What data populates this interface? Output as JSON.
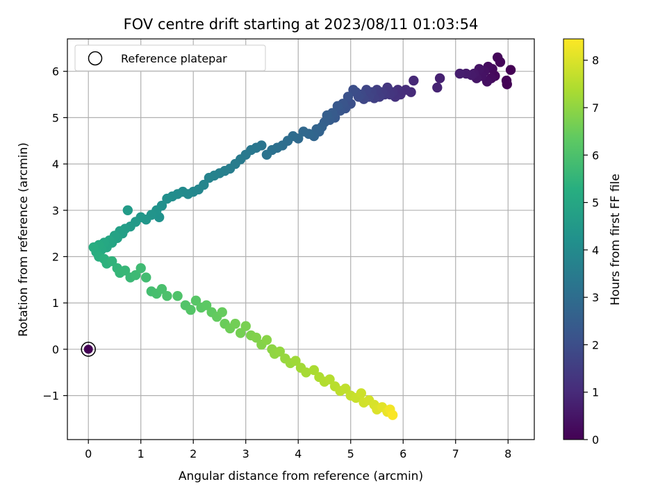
{
  "chart_data": {
    "type": "scatter",
    "title": "FOV centre drift starting at 2023/08/11 01:03:54",
    "xlabel": "Angular distance from reference (arcmin)",
    "ylabel": "Rotation from reference (arcmin)",
    "xlim": [
      -0.4,
      8.5
    ],
    "ylim": [
      -1.95,
      6.7
    ],
    "xticks": [
      0,
      1,
      2,
      3,
      4,
      5,
      6,
      7,
      8
    ],
    "yticks": [
      -1,
      0,
      1,
      2,
      3,
      4,
      5,
      6
    ],
    "grid": true,
    "legend": {
      "placement": "top-left",
      "entries": [
        "Reference platepar"
      ]
    },
    "reference_point": {
      "x": 0,
      "y": 0,
      "label": "Reference platepar"
    },
    "colorbar": {
      "label": "Hours from first FF file",
      "range": [
        0,
        8.45
      ],
      "ticks": [
        0,
        1,
        2,
        3,
        4,
        5,
        6,
        7,
        8
      ],
      "colormap": "viridis"
    },
    "series_color_by": "hours",
    "points_columns": [
      "x",
      "y",
      "hours"
    ],
    "points": [
      [
        8.05,
        6.03,
        0.0
      ],
      [
        7.98,
        5.72,
        0.03
      ],
      [
        7.97,
        5.8,
        0.06
      ],
      [
        7.85,
        6.2,
        0.1
      ],
      [
        7.8,
        6.3,
        0.14
      ],
      [
        7.75,
        5.9,
        0.18
      ],
      [
        7.7,
        6.05,
        0.22
      ],
      [
        7.68,
        5.85,
        0.26
      ],
      [
        7.62,
        6.1,
        0.3
      ],
      [
        7.6,
        5.78,
        0.34
      ],
      [
        7.55,
        6.0,
        0.38
      ],
      [
        7.5,
        5.9,
        0.42
      ],
      [
        7.45,
        6.05,
        0.46
      ],
      [
        7.4,
        5.85,
        0.5
      ],
      [
        7.35,
        5.95,
        0.55
      ],
      [
        7.3,
        5.92,
        0.6
      ],
      [
        7.2,
        5.95,
        0.65
      ],
      [
        7.08,
        5.95,
        0.7
      ],
      [
        6.7,
        5.85,
        0.78
      ],
      [
        6.65,
        5.65,
        0.85
      ],
      [
        6.2,
        5.8,
        0.95
      ],
      [
        6.15,
        5.55,
        1.0
      ],
      [
        6.05,
        5.6,
        1.05
      ],
      [
        5.95,
        5.5,
        1.1
      ],
      [
        5.9,
        5.6,
        1.15
      ],
      [
        5.85,
        5.45,
        1.2
      ],
      [
        5.8,
        5.55,
        1.25
      ],
      [
        5.75,
        5.5,
        1.3
      ],
      [
        5.7,
        5.65,
        1.35
      ],
      [
        5.65,
        5.5,
        1.4
      ],
      [
        5.6,
        5.55,
        1.45
      ],
      [
        5.55,
        5.45,
        1.5
      ],
      [
        5.5,
        5.6,
        1.55
      ],
      [
        5.45,
        5.42,
        1.6
      ],
      [
        5.4,
        5.55,
        1.65
      ],
      [
        5.35,
        5.45,
        1.7
      ],
      [
        5.3,
        5.6,
        1.75
      ],
      [
        5.25,
        5.4,
        1.8
      ],
      [
        5.2,
        5.5,
        1.85
      ],
      [
        5.15,
        5.45,
        1.9
      ],
      [
        5.1,
        5.55,
        1.95
      ],
      [
        5.05,
        5.6,
        2.0
      ],
      [
        5.0,
        5.3,
        2.05
      ],
      [
        4.95,
        5.45,
        2.1
      ],
      [
        4.9,
        5.2,
        2.15
      ],
      [
        4.85,
        5.3,
        2.2
      ],
      [
        4.8,
        5.15,
        2.25
      ],
      [
        4.75,
        5.25,
        2.3
      ],
      [
        4.7,
        5.0,
        2.35
      ],
      [
        4.65,
        5.1,
        2.4
      ],
      [
        4.6,
        4.95,
        2.45
      ],
      [
        4.55,
        5.05,
        2.5
      ],
      [
        4.5,
        4.9,
        2.55
      ],
      [
        4.45,
        4.8,
        2.6
      ],
      [
        4.4,
        4.7,
        2.65
      ],
      [
        4.35,
        4.75,
        2.7
      ],
      [
        4.3,
        4.6,
        2.75
      ],
      [
        4.2,
        4.65,
        2.8
      ],
      [
        4.1,
        4.7,
        2.85
      ],
      [
        4.0,
        4.55,
        2.9
      ],
      [
        3.9,
        4.6,
        2.95
      ],
      [
        3.8,
        4.5,
        3.0
      ],
      [
        3.7,
        4.4,
        3.05
      ],
      [
        3.6,
        4.35,
        3.1
      ],
      [
        3.5,
        4.3,
        3.15
      ],
      [
        3.4,
        4.2,
        3.2
      ],
      [
        3.3,
        4.4,
        3.25
      ],
      [
        3.2,
        4.35,
        3.3
      ],
      [
        3.1,
        4.3,
        3.35
      ],
      [
        3.0,
        4.2,
        3.4
      ],
      [
        2.9,
        4.1,
        3.45
      ],
      [
        2.8,
        4.0,
        3.5
      ],
      [
        2.7,
        3.9,
        3.55
      ],
      [
        2.6,
        3.85,
        3.6
      ],
      [
        2.5,
        3.8,
        3.65
      ],
      [
        2.4,
        3.75,
        3.7
      ],
      [
        2.3,
        3.7,
        3.75
      ],
      [
        2.2,
        3.55,
        3.8
      ],
      [
        2.1,
        3.45,
        3.85
      ],
      [
        2.0,
        3.4,
        3.9
      ],
      [
        1.9,
        3.35,
        3.95
      ],
      [
        1.8,
        3.4,
        4.0
      ],
      [
        1.7,
        3.35,
        4.05
      ],
      [
        1.6,
        3.3,
        4.1
      ],
      [
        1.5,
        3.25,
        4.15
      ],
      [
        1.4,
        3.1,
        4.2
      ],
      [
        1.35,
        2.85,
        4.25
      ],
      [
        1.3,
        3.0,
        4.3
      ],
      [
        1.2,
        2.9,
        4.35
      ],
      [
        1.1,
        2.8,
        4.4
      ],
      [
        1.0,
        2.85,
        4.45
      ],
      [
        0.9,
        2.75,
        4.5
      ],
      [
        0.8,
        2.65,
        4.55
      ],
      [
        0.75,
        3.0,
        4.6
      ],
      [
        0.7,
        2.6,
        4.65
      ],
      [
        0.65,
        2.5,
        4.7
      ],
      [
        0.6,
        2.55,
        4.75
      ],
      [
        0.55,
        2.4,
        4.8
      ],
      [
        0.5,
        2.45,
        4.85
      ],
      [
        0.45,
        2.3,
        4.9
      ],
      [
        0.4,
        2.35,
        4.95
      ],
      [
        0.35,
        2.2,
        5.0
      ],
      [
        0.3,
        2.3,
        5.05
      ],
      [
        0.25,
        2.15,
        5.1
      ],
      [
        0.2,
        2.25,
        5.15
      ],
      [
        0.15,
        2.1,
        5.2
      ],
      [
        0.1,
        2.2,
        5.25
      ],
      [
        0.2,
        2.0,
        5.3
      ],
      [
        0.3,
        1.95,
        5.35
      ],
      [
        0.35,
        1.85,
        5.4
      ],
      [
        0.45,
        1.9,
        5.45
      ],
      [
        0.55,
        1.75,
        5.5
      ],
      [
        0.6,
        1.65,
        5.55
      ],
      [
        0.7,
        1.7,
        5.6
      ],
      [
        0.8,
        1.55,
        5.65
      ],
      [
        0.9,
        1.6,
        5.7
      ],
      [
        1.0,
        1.75,
        5.75
      ],
      [
        1.1,
        1.55,
        5.8
      ],
      [
        1.2,
        1.25,
        5.85
      ],
      [
        1.3,
        1.2,
        5.9
      ],
      [
        1.4,
        1.3,
        5.95
      ],
      [
        1.5,
        1.15,
        6.0
      ],
      [
        1.7,
        1.15,
        6.05
      ],
      [
        1.85,
        0.95,
        6.1
      ],
      [
        1.95,
        0.85,
        6.15
      ],
      [
        2.05,
        1.05,
        6.2
      ],
      [
        2.15,
        0.9,
        6.25
      ],
      [
        2.25,
        0.95,
        6.3
      ],
      [
        2.35,
        0.8,
        6.35
      ],
      [
        2.45,
        0.7,
        6.4
      ],
      [
        2.55,
        0.8,
        6.45
      ],
      [
        2.6,
        0.55,
        6.5
      ],
      [
        2.7,
        0.45,
        6.55
      ],
      [
        2.8,
        0.55,
        6.6
      ],
      [
        2.9,
        0.35,
        6.65
      ],
      [
        3.0,
        0.5,
        6.7
      ],
      [
        3.1,
        0.3,
        6.75
      ],
      [
        3.2,
        0.25,
        6.8
      ],
      [
        3.3,
        0.1,
        6.85
      ],
      [
        3.4,
        0.2,
        6.9
      ],
      [
        3.5,
        0.0,
        6.95
      ],
      [
        3.55,
        -0.1,
        7.0
      ],
      [
        3.65,
        -0.05,
        7.05
      ],
      [
        3.75,
        -0.2,
        7.1
      ],
      [
        3.85,
        -0.3,
        7.15
      ],
      [
        3.95,
        -0.25,
        7.2
      ],
      [
        4.05,
        -0.4,
        7.25
      ],
      [
        4.15,
        -0.5,
        7.3
      ],
      [
        4.3,
        -0.45,
        7.35
      ],
      [
        4.4,
        -0.6,
        7.4
      ],
      [
        4.5,
        -0.7,
        7.45
      ],
      [
        4.6,
        -0.65,
        7.5
      ],
      [
        4.7,
        -0.8,
        7.55
      ],
      [
        4.8,
        -0.9,
        7.6
      ],
      [
        4.9,
        -0.85,
        7.65
      ],
      [
        5.0,
        -1.0,
        7.7
      ],
      [
        5.1,
        -1.05,
        7.75
      ],
      [
        5.2,
        -0.95,
        7.8
      ],
      [
        5.25,
        -1.15,
        7.85
      ],
      [
        5.35,
        -1.1,
        7.9
      ],
      [
        5.45,
        -1.2,
        7.95
      ],
      [
        5.5,
        -1.3,
        8.0
      ],
      [
        5.6,
        -1.25,
        8.1
      ],
      [
        5.7,
        -1.35,
        8.2
      ],
      [
        5.75,
        -1.3,
        8.3
      ],
      [
        5.8,
        -1.42,
        8.4
      ]
    ]
  }
}
